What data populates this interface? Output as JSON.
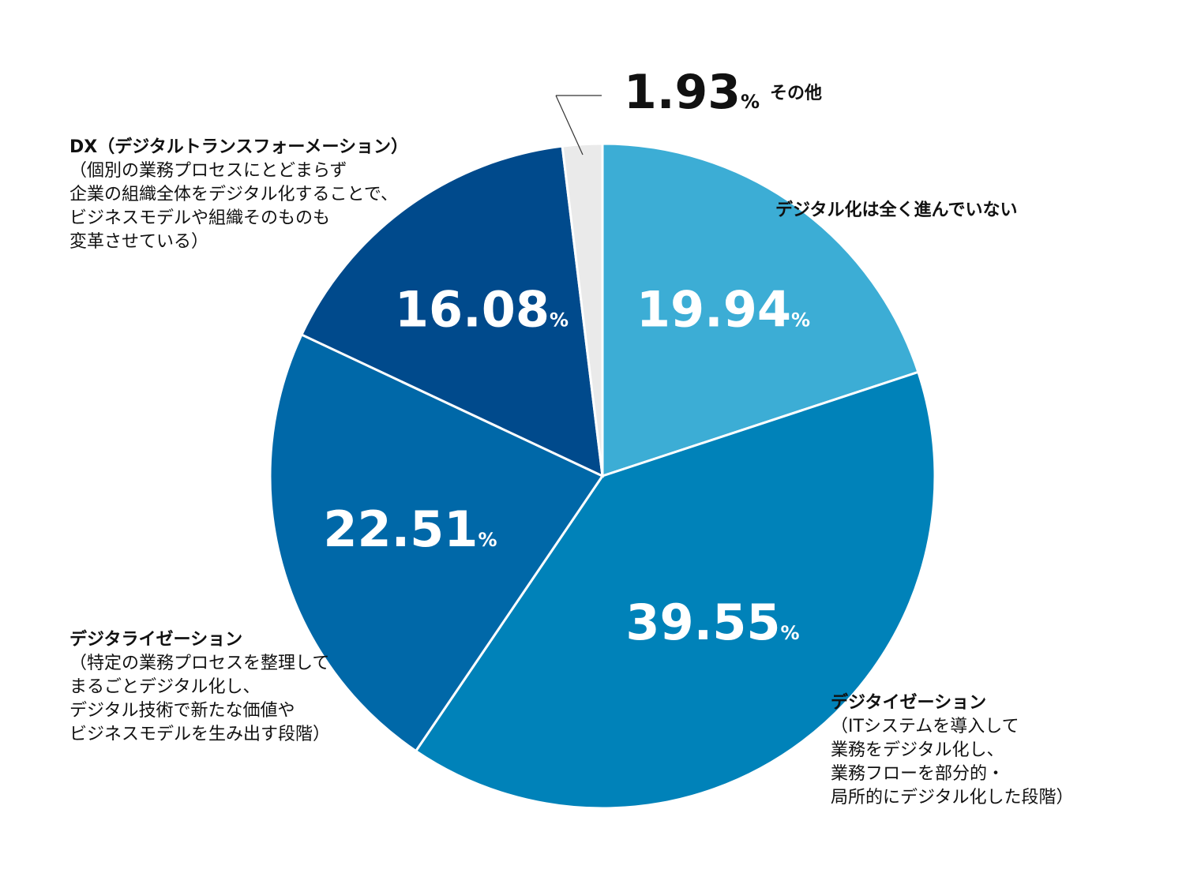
{
  "chart_data": {
    "type": "pie",
    "unit": "%",
    "slices": [
      {
        "name": "デジタル化は全く進んでいない",
        "value": 19.94,
        "color": "#3cadd5",
        "display": "19.94"
      },
      {
        "name": "デジタイゼーション",
        "value": 39.55,
        "color": "#0082b9",
        "display": "39.55"
      },
      {
        "name": "デジタライゼーション",
        "value": 22.51,
        "color": "#0068a8",
        "display": "22.51"
      },
      {
        "name": "DX（デジタルトランスフォーメーション）",
        "value": 16.08,
        "color": "#004a8c",
        "display": "16.08"
      },
      {
        "name": "その他",
        "value": 1.93,
        "color": "#eaeaea",
        "display": "1.93"
      }
    ]
  },
  "labels": {
    "none": {
      "head": "デジタル化は全く進んでいない"
    },
    "digitization": {
      "head": "デジタイゼーション",
      "lines": [
        "（ITシステムを導入して",
        "業務をデジタル化し、",
        "業務フローを部分的・",
        "局所的にデジタル化した段階）"
      ]
    },
    "digitalization": {
      "head": "デジタライゼーション",
      "lines": [
        "（特定の業務プロセスを整理して",
        "まるごとデジタル化し、",
        "デジタル技術で新たな価値や",
        "ビジネスモデルを生み出す段階）"
      ]
    },
    "dx": {
      "head": "DX（デジタルトランスフォーメーション）",
      "lines": [
        "（個別の業務プロセスにとどまらず",
        "企業の組織全体をデジタル化することで、",
        "ビジネスモデルや組織そのものも",
        "変革させている）"
      ]
    },
    "other": {
      "value": "1.93",
      "unit": "%",
      "name": "その他"
    }
  }
}
